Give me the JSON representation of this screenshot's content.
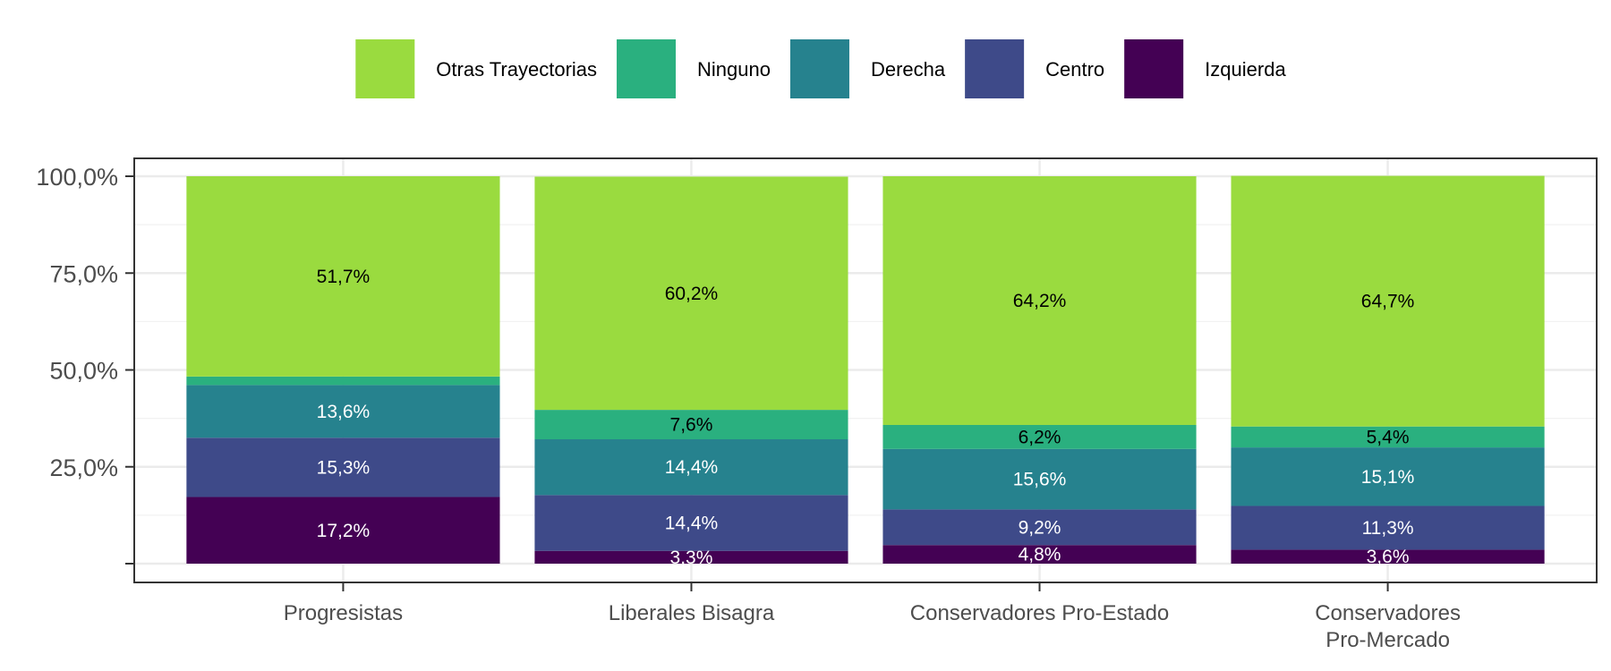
{
  "chart_data": {
    "type": "bar",
    "stacked": true,
    "title": "",
    "xlabel": "",
    "ylabel": "",
    "ylim": [
      0,
      1
    ],
    "y_ticks": [
      0.25,
      0.5,
      0.75,
      1.0
    ],
    "y_tick_labels": [
      "25,0%",
      "50,0%",
      "75,0%",
      "100,0%"
    ],
    "grid": true,
    "legend_position": "top",
    "categories": [
      [
        "Progresistas"
      ],
      [
        "Liberales Bisagra"
      ],
      [
        "Conservadores Pro-Estado"
      ],
      [
        "Conservadores",
        "Pro-Mercado"
      ]
    ],
    "series": [
      {
        "name": "Izquierda",
        "color": "#440154",
        "label_color": "#ffffff",
        "values": [
          0.172,
          0.033,
          0.048,
          0.036
        ],
        "labels": [
          "17,2%",
          "3,3%",
          "4,8%",
          "3,6%"
        ]
      },
      {
        "name": "Centro",
        "color": "#3E4A89",
        "label_color": "#ffffff",
        "values": [
          0.153,
          0.144,
          0.092,
          0.113
        ],
        "labels": [
          "15,3%",
          "14,4%",
          "9,2%",
          "11,3%"
        ]
      },
      {
        "name": "Derecha",
        "color": "#26828E",
        "label_color": "#ffffff",
        "values": [
          0.136,
          0.144,
          0.156,
          0.151
        ],
        "labels": [
          "13,6%",
          "14,4%",
          "15,6%",
          "15,1%"
        ]
      },
      {
        "name": "Ninguno",
        "color": "#2AB07F",
        "label_color": "#000000",
        "values": [
          0.022,
          0.076,
          0.062,
          0.054
        ],
        "labels": [
          "",
          "7,6%",
          "6,2%",
          "5,4%"
        ]
      },
      {
        "name": "Otras Trayectorias",
        "color": "#9ADB3F",
        "label_color": "#000000",
        "values": [
          0.517,
          0.602,
          0.642,
          0.647
        ],
        "labels": [
          "51,7%",
          "60,2%",
          "64,2%",
          "64,7%"
        ]
      }
    ],
    "legend_order": [
      "Otras Trayectorias",
      "Ninguno",
      "Derecha",
      "Centro",
      "Izquierda"
    ]
  }
}
